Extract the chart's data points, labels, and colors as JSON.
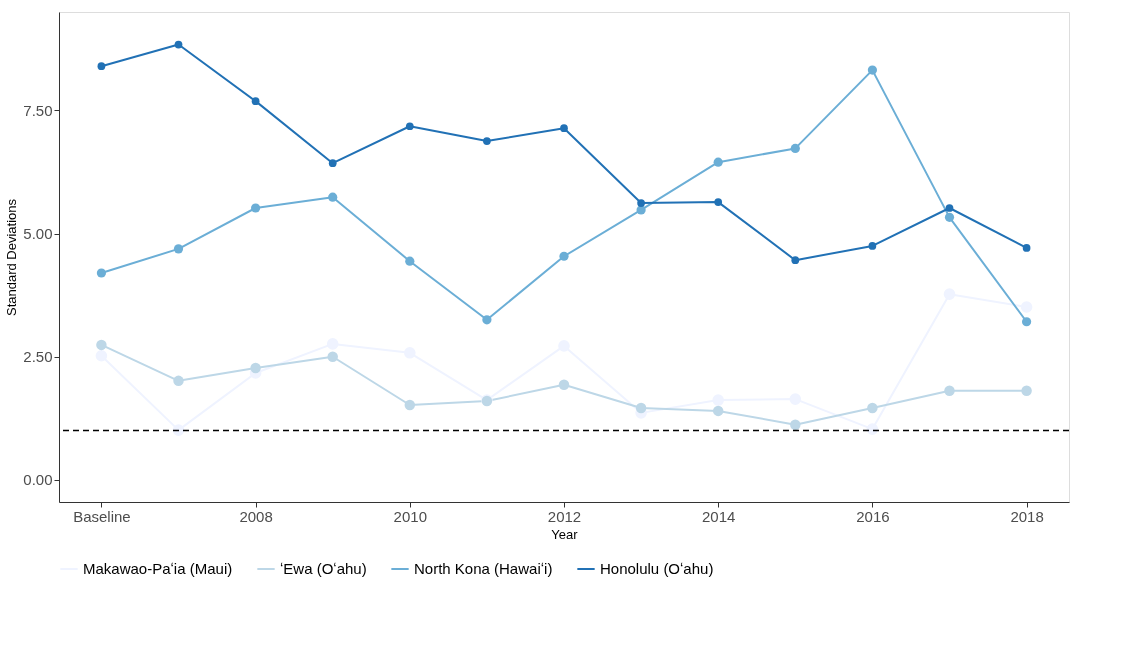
{
  "chart_data": {
    "type": "line",
    "xlabel": "Year",
    "ylabel": "Standard Deviations",
    "categories": [
      "Baseline",
      null,
      "2008",
      null,
      "2010",
      null,
      "2012",
      null,
      "2014",
      null,
      "2016",
      null,
      "2018"
    ],
    "ylim": [
      -0.45,
      9.5
    ],
    "yticks": [
      {
        "value": 0,
        "label": "0.00"
      },
      {
        "value": 2.5,
        "label": "2.50"
      },
      {
        "value": 5,
        "label": "5.00"
      },
      {
        "value": 7.5,
        "label": "7.50"
      }
    ],
    "grid": false,
    "legend": "bottom",
    "marker": "circle",
    "line_style": "solid",
    "ref_lines": [
      {
        "axis": "y",
        "value": 1,
        "label": null,
        "color": "#000000",
        "line_style": "dashed"
      }
    ],
    "series": [
      {
        "name": "Makawao-Paʻia (Maui)",
        "color": "#eff3ff",
        "values": [
          2.52,
          1.01,
          2.17,
          2.76,
          2.58,
          1.62,
          2.72,
          1.36,
          1.62,
          1.64,
          1.03,
          3.77,
          3.51
        ]
      },
      {
        "name": "ʻEwa (Oʻahu)",
        "color": "#bdd7e7",
        "values": [
          2.74,
          2.01,
          2.27,
          2.5,
          1.52,
          1.6,
          1.93,
          1.46,
          1.4,
          1.12,
          1.46,
          1.81,
          1.81
        ]
      },
      {
        "name": "North Kona (Hawaiʻi)",
        "color": "#6baed6",
        "values": [
          4.2,
          4.69,
          5.52,
          5.74,
          4.44,
          3.25,
          4.54,
          5.48,
          6.45,
          6.73,
          8.32,
          5.33,
          3.21
        ]
      },
      {
        "name": "Honolulu (Oʻahu)",
        "color": "#2171b5",
        "values": [
          8.4,
          8.84,
          7.69,
          6.43,
          7.18,
          6.88,
          7.14,
          5.62,
          5.64,
          4.46,
          4.75,
          5.52,
          4.71
        ]
      }
    ]
  }
}
